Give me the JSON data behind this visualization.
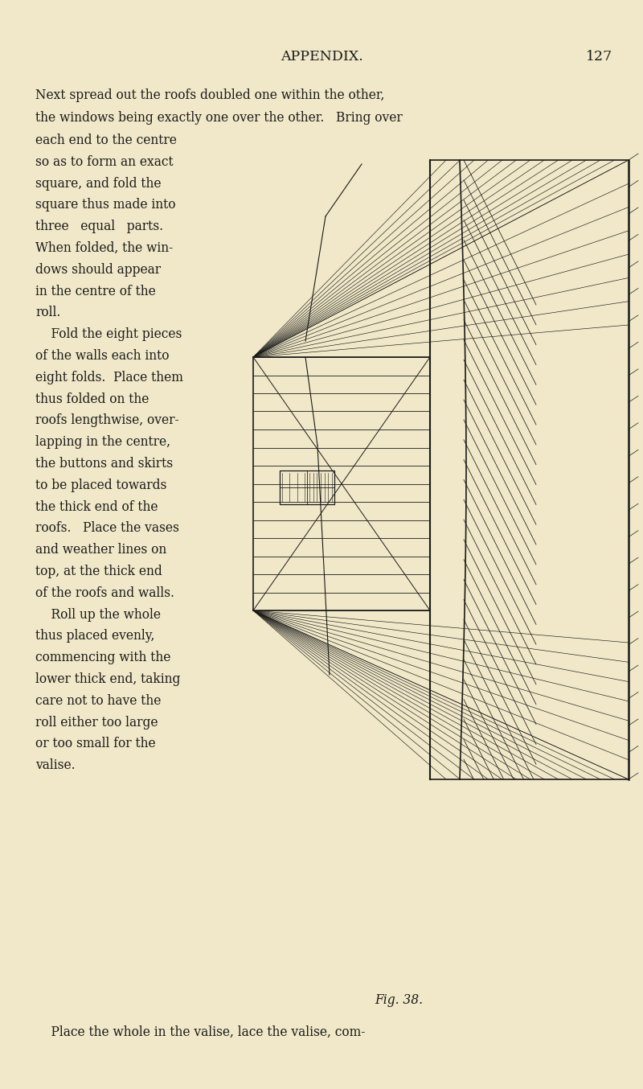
{
  "bg_color": "#f0e8c8",
  "text_color": "#1a1a1a",
  "page_width": 8.0,
  "page_height": 13.54,
  "header_text": "APPENDIX.",
  "page_number": "127",
  "left_col_lines": [
    "each end to the centre",
    "so as to form an exact",
    "square, and fold the",
    "square thus made into",
    "three   equal   parts.",
    "When folded, the win-",
    "dows should appear",
    "in the centre of the",
    "roll.",
    "    Fold the eight pieces",
    "of the walls each into",
    "eight folds.  Place them",
    "thus folded on the",
    "roofs lengthwise, over-",
    "lapping in the centre,",
    "the buttons and skirts",
    "to be placed towards",
    "the thick end of the",
    "roofs.   Place the vases",
    "and weather lines on",
    "top, at the thick end",
    "of the roofs and walls.",
    "    Roll up the whole",
    "thus placed evenly,",
    "commencing with the",
    "lower thick end, taking",
    "care not to have the",
    "roll either too large",
    "or too small for the",
    "valise."
  ],
  "fig_caption": "Fig. 38.",
  "font_size_body": 11.2,
  "font_size_header": 12.5
}
